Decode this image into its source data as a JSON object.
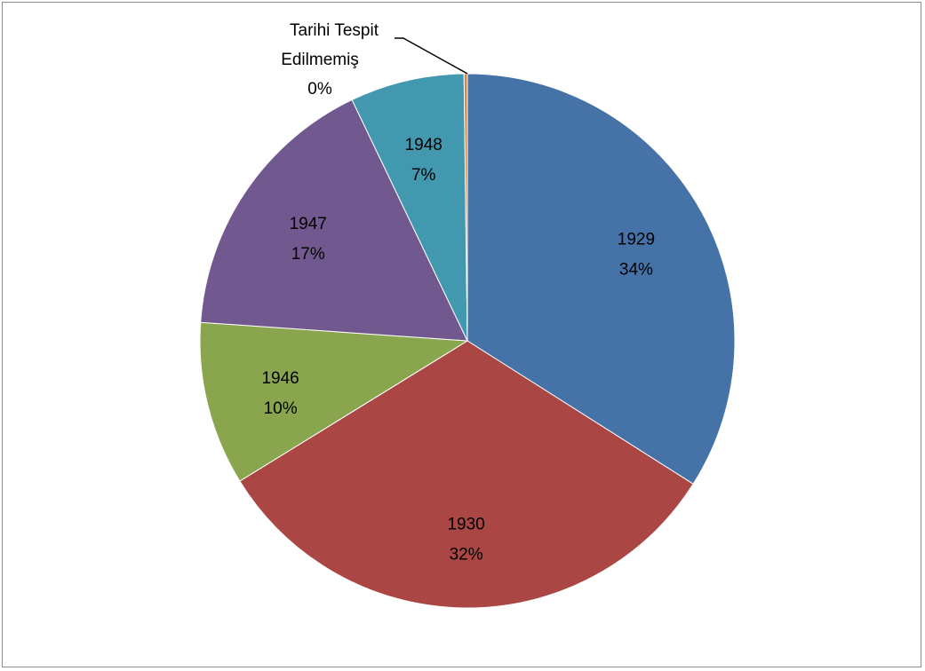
{
  "chart_data": {
    "type": "pie",
    "title": "",
    "start_angle_deg": 0,
    "direction": "clockwise",
    "slices": [
      {
        "category": "1929",
        "percent_label": "34%",
        "value": 34.0,
        "color": "#4572a7"
      },
      {
        "category": "1930",
        "percent_label": "32%",
        "value": 32.2,
        "color": "#aa4643"
      },
      {
        "category": "1946",
        "percent_label": "10%",
        "value": 9.9,
        "color": "#89a54e"
      },
      {
        "category": "1947",
        "percent_label": "17%",
        "value": 16.8,
        "color": "#71588f"
      },
      {
        "category": "1948",
        "percent_label": "7%",
        "value": 6.9,
        "color": "#4198af"
      },
      {
        "category": "Tarihi Tespit Edilmemiş",
        "percent_label": "0%",
        "value": 0.2,
        "color": "#db843d"
      }
    ],
    "callout_label": {
      "line1": "Tarihi Tespit",
      "line2": "Edilmemiş",
      "line3": "0%"
    },
    "legend": "none"
  }
}
